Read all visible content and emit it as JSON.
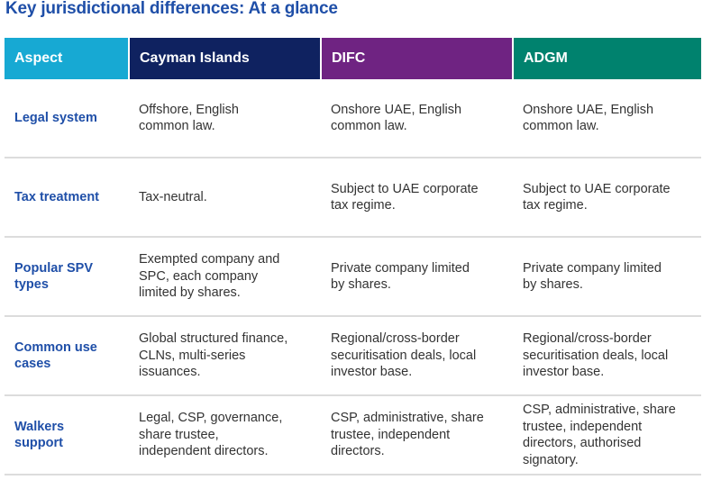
{
  "title": "Key jurisdictional differences: At a glance",
  "colors": {
    "title": "#1f4fa8",
    "aspect": "#17a9d3",
    "cayman": "#0f2260",
    "difc": "#6f2382",
    "adgm": "#00826e"
  },
  "headers": [
    "Aspect",
    "Cayman Islands",
    "DIFC",
    "ADGM"
  ],
  "rows": [
    [
      "Legal system",
      "Offshore, English\ncommon law.",
      "Onshore UAE, English\ncommon law.",
      "Onshore UAE, English\ncommon law."
    ],
    [
      "Tax treatment",
      "Tax-neutral.",
      "Subject to UAE corporate\ntax regime.",
      "Subject to UAE corporate\ntax regime."
    ],
    [
      "Popular SPV\ntypes",
      "Exempted company and\nSPC, each company\nlimited by shares.",
      "Private company limited\nby shares.",
      "Private company limited\nby shares."
    ],
    [
      "Common use\ncases",
      "Global structured finance,\nCLNs, multi-series\nissuances.",
      "Regional/cross-border\nsecuritisation deals, local\ninvestor base.",
      "Regional/cross-border\nsecuritisation deals, local\ninvestor base."
    ],
    [
      "Walkers\nsupport",
      "Legal, CSP, governance,\nshare trustee,\nindependent directors.",
      "CSP, administrative, share\ntrustee, independent\ndirectors.",
      "CSP, administrative, share\ntrustee, independent\ndirectors, authorised\nsignatory."
    ]
  ]
}
